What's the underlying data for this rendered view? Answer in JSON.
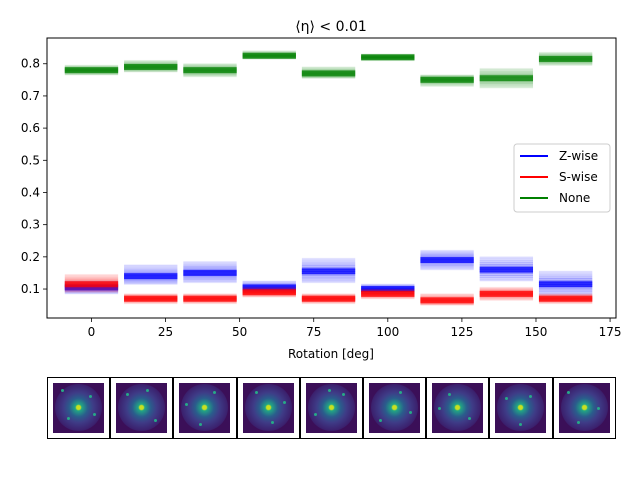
{
  "chart_data": {
    "type": "range-bars",
    "title": "⟨η⟩ < 0.01",
    "xlabel": "Rotation [deg]",
    "ylabel": "",
    "xlim": [
      -15,
      177
    ],
    "ylim": [
      0.01,
      0.88
    ],
    "xticks": [
      0,
      25,
      50,
      75,
      100,
      125,
      150,
      175
    ],
    "yticks": [
      0.1,
      0.2,
      0.3,
      0.4,
      0.5,
      0.6,
      0.7,
      0.8
    ],
    "x": [
      0,
      20,
      40,
      60,
      80,
      100,
      120,
      140,
      160
    ],
    "bar_halfwidth_deg": 9,
    "legend_position": "center-right",
    "series": [
      {
        "name": "Z-wise",
        "color": "#0000ff",
        "low": [
          0.085,
          0.115,
          0.12,
          0.09,
          0.12,
          0.085,
          0.16,
          0.125,
          0.08
        ],
        "mid": [
          0.105,
          0.14,
          0.15,
          0.105,
          0.155,
          0.1,
          0.19,
          0.16,
          0.115
        ],
        "high": [
          0.125,
          0.175,
          0.185,
          0.125,
          0.195,
          0.115,
          0.22,
          0.2,
          0.155
        ]
      },
      {
        "name": "S-wise",
        "color": "#ff0000",
        "low": [
          0.09,
          0.055,
          0.055,
          0.075,
          0.055,
          0.07,
          0.05,
          0.065,
          0.055
        ],
        "mid": [
          0.115,
          0.07,
          0.07,
          0.09,
          0.07,
          0.085,
          0.065,
          0.085,
          0.07
        ],
        "high": [
          0.145,
          0.085,
          0.085,
          0.105,
          0.085,
          0.1,
          0.085,
          0.105,
          0.085
        ]
      },
      {
        "name": "None",
        "color": "#008000",
        "low": [
          0.765,
          0.775,
          0.76,
          0.815,
          0.755,
          0.81,
          0.73,
          0.725,
          0.795
        ],
        "mid": [
          0.78,
          0.79,
          0.78,
          0.825,
          0.77,
          0.82,
          0.75,
          0.755,
          0.815
        ],
        "high": [
          0.795,
          0.81,
          0.8,
          0.84,
          0.79,
          0.83,
          0.765,
          0.785,
          0.835
        ]
      }
    ]
  },
  "thumbnails": {
    "count": 9,
    "colormap": "viridis",
    "border_color": "#000000"
  }
}
